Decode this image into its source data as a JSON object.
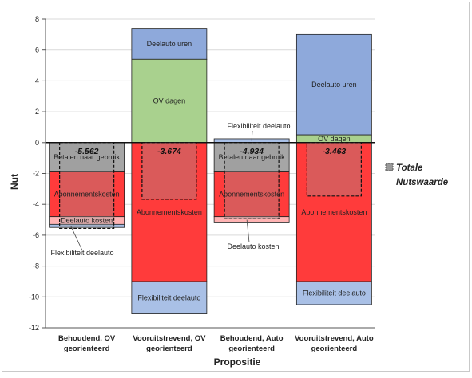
{
  "chart_data": {
    "type": "bar",
    "stacked": true,
    "xlabel": "Propositie",
    "ylabel": "Nut",
    "ylim": [
      -12,
      8
    ],
    "yticks": [
      8,
      6,
      4,
      2,
      0,
      -2,
      -4,
      -6,
      -8,
      -10,
      -12
    ],
    "grid": true,
    "legend_position": "right",
    "legend": [
      {
        "label": "Totale Nutswaarde",
        "color": "#9a9a9a",
        "style": "dashed-box"
      }
    ],
    "categories": [
      [
        "Behoudend, OV",
        "georienteerd"
      ],
      [
        "Vooruitstrevend, OV",
        "georienteerd"
      ],
      [
        "Behoudend, Auto",
        "georienteerd"
      ],
      [
        "Vooruitstrevend, Auto",
        "georienteerd"
      ]
    ],
    "totals": [
      {
        "label": "-5.562",
        "value": -5.562
      },
      {
        "label": "-3.674",
        "value": -3.674
      },
      {
        "label": "-4.934",
        "value": -4.934
      },
      {
        "label": "-3.463",
        "value": -3.463
      }
    ],
    "segments": [
      [
        {
          "name": "Betalen naar gebruik",
          "from": 0,
          "to": -1.9,
          "color": "#a6a6a6",
          "label": "Betalen naar gebruik"
        },
        {
          "name": "Abonnementskosten",
          "from": -1.9,
          "to": -4.8,
          "color": "#ff3b3b",
          "label": "Abonnementskosten"
        },
        {
          "name": "Deelauto kosten",
          "from": -4.8,
          "to": -5.3,
          "color": "#ffb3b3",
          "label": "Deelauto kosten"
        },
        {
          "name": "Flexibiliteit deelauto",
          "from": -5.3,
          "to": -5.5,
          "color": "#a9c0e6",
          "label": ""
        }
      ],
      [
        {
          "name": "Deelauto uren",
          "from": 7.4,
          "to": 5.4,
          "color": "#8ea9db",
          "label": "Deelauto uren"
        },
        {
          "name": "OV dagen",
          "from": 5.4,
          "to": 0,
          "color": "#a9d18e",
          "label": "OV dagen"
        },
        {
          "name": "Abonnementskosten",
          "from": 0,
          "to": -9.0,
          "color": "#ff3b3b",
          "label": "Abonnementskosten"
        },
        {
          "name": "Flexibiliteit deelauto",
          "from": -9.0,
          "to": -11.1,
          "color": "#a9c0e6",
          "label": "Flexibiliteit deelauto"
        }
      ],
      [
        {
          "name": "Flexibiliteit deelauto",
          "from": 0.25,
          "to": 0,
          "color": "#a9c0e6",
          "label": ""
        },
        {
          "name": "Betalen naar gebruik",
          "from": 0,
          "to": -1.9,
          "color": "#a6a6a6",
          "label": "Betalen naar gebruik"
        },
        {
          "name": "Abonnementskosten",
          "from": -1.9,
          "to": -4.8,
          "color": "#ff3b3b",
          "label": "Abonnementskosten"
        },
        {
          "name": "Deelauto kosten",
          "from": -4.8,
          "to": -5.2,
          "color": "#ffb3b3",
          "label": ""
        }
      ],
      [
        {
          "name": "Deelauto uren",
          "from": 7.0,
          "to": 0.5,
          "color": "#8ea9db",
          "label": "Deelauto uren"
        },
        {
          "name": "OV dagen",
          "from": 0.5,
          "to": 0,
          "color": "#a9d18e",
          "label": "OV dagen"
        },
        {
          "name": "Abonnementskosten",
          "from": 0,
          "to": -9.0,
          "color": "#ff3b3b",
          "label": "Abonnementskosten"
        },
        {
          "name": "Flexibiliteit deelauto",
          "from": -9.0,
          "to": -10.5,
          "color": "#a9c0e6",
          "label": "Flexibiliteit deelauto"
        }
      ]
    ],
    "callouts": [
      {
        "bar": 0,
        "text": "Flexibiliteit deelauto",
        "value": -5.4
      },
      {
        "bar": 2,
        "text": "Flexibiliteit deelauto",
        "value": 0.12
      },
      {
        "bar": 2,
        "text": "Deelauto kosten",
        "value": -5.0
      }
    ]
  }
}
